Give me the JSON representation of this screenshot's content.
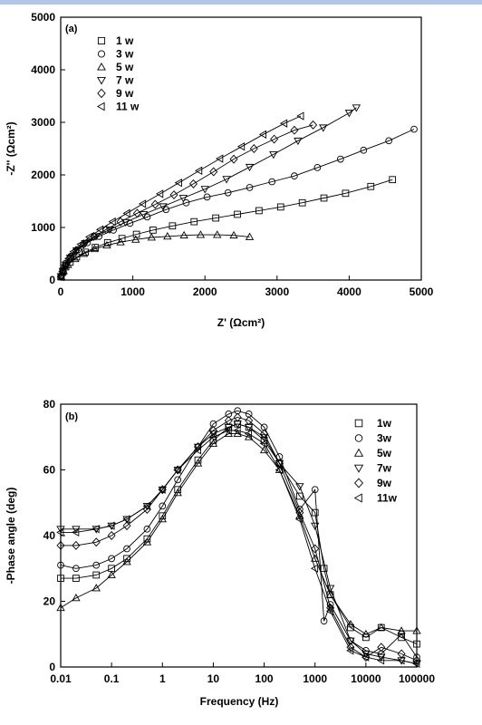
{
  "chart_data": [
    {
      "panel": "(a)",
      "type": "scatter",
      "xlabel": "Z' (Ωcm²)",
      "ylabel": "-Z'' (Ωcm²)",
      "xlim": [
        0,
        5000
      ],
      "ylim": [
        0,
        5000
      ],
      "xticks": [
        0,
        1000,
        2000,
        3000,
        4000,
        5000
      ],
      "yticks": [
        0,
        1000,
        2000,
        3000,
        4000,
        5000
      ],
      "legend_position": "top-left",
      "series": [
        {
          "name": "1 w",
          "marker": "square",
          "x": [
            5,
            30,
            70,
            130,
            220,
            340,
            480,
            650,
            850,
            1050,
            1280,
            1550,
            1850,
            2150,
            2450,
            2750,
            3050,
            3350,
            3650,
            3950,
            4300,
            4600
          ],
          "y": [
            60,
            150,
            250,
            340,
            440,
            530,
            620,
            710,
            790,
            870,
            950,
            1030,
            1110,
            1180,
            1250,
            1320,
            1390,
            1470,
            1560,
            1650,
            1780,
            1910
          ]
        },
        {
          "name": "3 w",
          "marker": "circle",
          "x": [
            5,
            30,
            70,
            140,
            240,
            370,
            530,
            730,
            960,
            1200,
            1460,
            1740,
            2030,
            2320,
            2620,
            2930,
            3240,
            3560,
            3880,
            4200,
            4550,
            4900
          ],
          "y": [
            80,
            190,
            320,
            450,
            580,
            710,
            830,
            950,
            1080,
            1200,
            1340,
            1470,
            1580,
            1660,
            1760,
            1870,
            1980,
            2140,
            2300,
            2470,
            2650,
            2870
          ]
        },
        {
          "name": "5 w",
          "marker": "triangle-up",
          "x": [
            5,
            40,
            100,
            200,
            320,
            470,
            640,
            830,
            1040,
            1260,
            1480,
            1710,
            1940,
            2170,
            2400,
            2620
          ],
          "y": [
            70,
            170,
            290,
            400,
            500,
            590,
            660,
            720,
            770,
            810,
            830,
            850,
            860,
            860,
            850,
            820
          ]
        },
        {
          "name": "7 w",
          "marker": "triangle-down",
          "x": [
            5,
            30,
            70,
            130,
            220,
            340,
            490,
            680,
            900,
            1150,
            1420,
            1700,
            2000,
            2300,
            2620,
            2950,
            3290,
            3640,
            4000,
            4100
          ],
          "y": [
            70,
            170,
            290,
            420,
            560,
            700,
            830,
            960,
            1100,
            1250,
            1400,
            1560,
            1730,
            1920,
            2150,
            2390,
            2650,
            2900,
            3180,
            3280
          ]
        },
        {
          "name": "9 w",
          "marker": "diamond",
          "x": [
            5,
            30,
            70,
            130,
            210,
            320,
            460,
            630,
            830,
            1060,
            1310,
            1570,
            1840,
            2120,
            2400,
            2680,
            2960,
            3240,
            3500
          ],
          "y": [
            70,
            170,
            290,
            420,
            560,
            690,
            830,
            960,
            1110,
            1270,
            1440,
            1620,
            1830,
            2060,
            2300,
            2500,
            2680,
            2850,
            2950
          ]
        },
        {
          "name": "11 w",
          "marker": "triangle-left",
          "x": [
            5,
            25,
            60,
            110,
            180,
            280,
            400,
            550,
            720,
            920,
            1140,
            1380,
            1640,
            1920,
            2210,
            2510,
            2810,
            3100,
            3330
          ],
          "y": [
            60,
            160,
            280,
            410,
            540,
            680,
            820,
            960,
            1110,
            1270,
            1450,
            1640,
            1850,
            2080,
            2310,
            2540,
            2770,
            2980,
            3120
          ]
        }
      ]
    },
    {
      "panel": "(b)",
      "type": "scatter",
      "xlabel": "Frequency (Hz)",
      "ylabel": "-Phase angle (deg)",
      "xscale": "log",
      "xlim": [
        0.01,
        100000
      ],
      "ylim": [
        0,
        80
      ],
      "xticks": [
        "0.01",
        "0.1",
        "1",
        "10",
        "100",
        "1000",
        "10000",
        "100000"
      ],
      "yticks": [
        0,
        20,
        40,
        60,
        80
      ],
      "legend_position": "top-right",
      "series": [
        {
          "name": "1w",
          "marker": "square",
          "x": [
            0.01,
            0.02,
            0.05,
            0.1,
            0.2,
            0.5,
            1,
            2,
            5,
            10,
            20,
            30,
            50,
            100,
            200,
            500,
            1000,
            1500,
            2000,
            5000,
            10000,
            20000,
            50000,
            100000
          ],
          "y": [
            27,
            27,
            28,
            30,
            33,
            39,
            46,
            54,
            63,
            69,
            73,
            74,
            73,
            69,
            62,
            52,
            47,
            30,
            22,
            12,
            9,
            12,
            9,
            7
          ]
        },
        {
          "name": "3w",
          "marker": "circle",
          "x": [
            0.01,
            0.02,
            0.05,
            0.1,
            0.2,
            0.5,
            1,
            2,
            5,
            10,
            20,
            30,
            50,
            100,
            200,
            500,
            1000,
            1500,
            2000,
            5000,
            10000,
            20000,
            50000,
            100000
          ],
          "y": [
            31,
            30,
            31,
            33,
            36,
            42,
            49,
            57,
            67,
            74,
            77,
            78,
            77,
            73,
            64,
            48,
            54,
            14,
            19,
            8,
            5,
            4,
            10,
            3
          ]
        },
        {
          "name": "5w",
          "marker": "triangle-up",
          "x": [
            0.01,
            0.02,
            0.05,
            0.1,
            0.2,
            0.5,
            1,
            2,
            5,
            10,
            20,
            30,
            50,
            100,
            200,
            500,
            1000,
            2000,
            5000,
            10000,
            20000,
            50000,
            100000
          ],
          "y": [
            18,
            21,
            24,
            28,
            32,
            38,
            45,
            53,
            62,
            68,
            71,
            71,
            70,
            66,
            60,
            46,
            33,
            22,
            13,
            10,
            12,
            11,
            11
          ]
        },
        {
          "name": "7w",
          "marker": "triangle-down",
          "x": [
            0.01,
            0.02,
            0.05,
            0.1,
            0.2,
            0.5,
            1,
            2,
            5,
            10,
            20,
            30,
            50,
            100,
            200,
            500,
            1000,
            2000,
            5000,
            10000,
            20000,
            50000,
            100000
          ],
          "y": [
            42,
            42,
            42,
            43,
            45,
            49,
            54,
            60,
            67,
            71,
            73,
            74,
            73,
            70,
            62,
            55,
            43,
            24,
            8,
            4,
            3,
            2,
            1
          ]
        },
        {
          "name": "9w",
          "marker": "diamond",
          "x": [
            0.01,
            0.02,
            0.05,
            0.1,
            0.2,
            0.5,
            1,
            2,
            5,
            10,
            20,
            30,
            50,
            100,
            200,
            500,
            1000,
            2000,
            5000,
            10000,
            20000,
            50000,
            100000
          ],
          "y": [
            37,
            37,
            38,
            40,
            43,
            48,
            54,
            60,
            67,
            72,
            75,
            76,
            75,
            71,
            62,
            47,
            36,
            18,
            6,
            3,
            6,
            4,
            2
          ]
        },
        {
          "name": "11w",
          "marker": "triangle-left",
          "x": [
            0.01,
            0.02,
            0.05,
            0.1,
            0.2,
            0.5,
            1,
            2,
            5,
            10,
            20,
            30,
            50,
            100,
            200,
            500,
            1000,
            2000,
            5000,
            10000,
            20000,
            50000,
            100000
          ],
          "y": [
            41,
            41,
            42,
            43,
            45,
            49,
            54,
            60,
            66,
            70,
            72,
            72,
            71,
            68,
            60,
            45,
            30,
            17,
            5,
            3,
            2,
            2,
            1
          ]
        }
      ]
    }
  ]
}
